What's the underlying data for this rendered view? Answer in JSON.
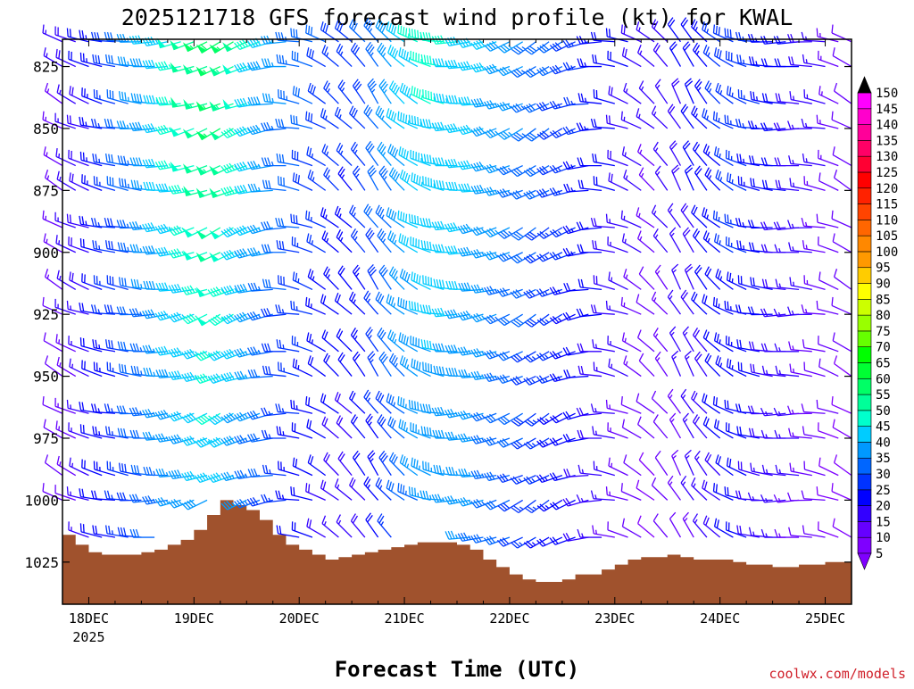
{
  "chart_data": {
    "type": "wind-barb-profile",
    "title": "2025121718 GFS forecast wind profile (kt) for KWAL",
    "xlabel": "Forecast Time (UTC)",
    "credit": "coolwx.com/models",
    "y_axis": {
      "quantity": "pressure (hPa)",
      "range": [
        1042,
        814
      ],
      "ticks": [
        825,
        850,
        875,
        900,
        925,
        950,
        975,
        1000,
        1025
      ],
      "tick_labels": [
        "825",
        "850",
        "875",
        "900",
        "925",
        "950",
        "975",
        "1000",
        "1025"
      ]
    },
    "x_axis": {
      "quantity": "forecast hour from 2025121718",
      "range": [
        0,
        180
      ],
      "ticks": [
        6,
        30,
        54,
        78,
        102,
        126,
        150,
        174
      ],
      "tick_labels": [
        "18DEC",
        "19DEC",
        "20DEC",
        "21DEC",
        "22DEC",
        "23DEC",
        "24DEC",
        "25DEC"
      ],
      "first_tick_year": "2025"
    },
    "colorbar": {
      "levels": [
        5,
        10,
        15,
        20,
        25,
        30,
        35,
        40,
        45,
        50,
        55,
        60,
        65,
        70,
        75,
        80,
        85,
        90,
        95,
        100,
        105,
        110,
        115,
        120,
        125,
        130,
        135,
        140,
        145,
        150
      ],
      "labels": [
        "5",
        "10",
        "15",
        "20",
        "25",
        "30",
        "35",
        "40",
        "45",
        "50",
        "55",
        "60",
        "65",
        "70",
        "75",
        "80",
        "85",
        "90",
        "95",
        "100",
        "105",
        "110",
        "115",
        "120",
        "125",
        "130",
        "135",
        "140",
        "145",
        "150"
      ],
      "colors": [
        "#7f00ff",
        "#6600ff",
        "#3300ff",
        "#0000ff",
        "#0033ff",
        "#0066ff",
        "#0099ff",
        "#00ccff",
        "#00ffcc",
        "#00ff99",
        "#00ff66",
        "#00ff33",
        "#00ff00",
        "#66ff00",
        "#99ff00",
        "#ccff00",
        "#ffff00",
        "#ffcc00",
        "#ff9900",
        "#ff8800",
        "#ff6600",
        "#ff4400",
        "#ff2200",
        "#ff0000",
        "#ff0033",
        "#ff0066",
        "#ff0099",
        "#ff00cc",
        "#ff00ff",
        "#ff00ff"
      ],
      "end_color_low": "#7f00ff",
      "end_color_high": "#000000"
    },
    "terrain": {
      "color": "#a0522d",
      "hours": [
        0,
        3,
        6,
        9,
        12,
        15,
        18,
        21,
        24,
        27,
        30,
        33,
        36,
        39,
        42,
        45,
        48,
        51,
        54,
        57,
        60,
        63,
        66,
        69,
        72,
        75,
        78,
        81,
        84,
        87,
        90,
        93,
        96,
        99,
        102,
        105,
        108,
        111,
        114,
        117,
        120,
        123,
        126,
        129,
        132,
        135,
        138,
        141,
        144,
        147,
        150,
        153,
        156,
        159,
        162,
        165,
        168,
        171,
        174,
        177,
        180
      ],
      "surface_pressure": [
        1014,
        1018,
        1021,
        1022,
        1022,
        1022,
        1021,
        1020,
        1018,
        1016,
        1012,
        1006,
        1000,
        1002,
        1004,
        1008,
        1014,
        1018,
        1020,
        1022,
        1024,
        1023,
        1022,
        1021,
        1020,
        1019,
        1018,
        1017,
        1017,
        1017,
        1018,
        1020,
        1024,
        1027,
        1030,
        1032,
        1033,
        1033,
        1032,
        1030,
        1030,
        1028,
        1026,
        1024,
        1023,
        1023,
        1022,
        1023,
        1024,
        1024,
        1024,
        1025,
        1026,
        1026,
        1027,
        1027,
        1026,
        1026,
        1025,
        1025,
        1026
      ]
    },
    "wind_levels_hpa": [
      815,
      825,
      840,
      850,
      865,
      875,
      890,
      900,
      915,
      925,
      940,
      950,
      965,
      975,
      990,
      1000,
      1015
    ],
    "barb_hours": [
      0,
      3,
      6,
      9,
      12,
      15,
      18,
      21,
      24,
      27,
      30,
      33,
      36,
      39,
      42,
      45,
      48,
      51,
      54,
      57,
      60,
      63,
      66,
      69,
      72,
      75,
      78,
      81,
      84,
      87,
      90,
      93,
      96,
      99,
      102,
      105,
      108,
      111,
      114,
      117,
      120,
      123,
      126,
      129,
      132,
      135,
      138,
      141,
      144,
      147,
      150,
      153,
      156,
      159,
      162,
      165,
      168,
      171,
      174,
      177,
      180
    ],
    "speed_kt_by_hour_low": [
      10,
      12,
      15,
      20,
      22,
      25,
      28,
      30,
      33,
      35,
      36,
      38,
      40,
      38,
      35,
      32,
      28,
      24,
      22,
      20,
      18,
      17,
      16,
      18,
      22,
      26,
      30,
      33,
      35,
      36,
      36,
      35,
      34,
      32,
      30,
      28,
      26,
      24,
      22,
      20,
      18,
      16,
      14,
      12,
      10,
      8,
      10,
      12,
      14,
      16,
      18,
      20,
      20,
      18,
      16,
      15,
      14,
      12,
      10,
      8,
      8
    ],
    "speed_kt_by_hour_high": [
      15,
      18,
      20,
      24,
      28,
      32,
      36,
      40,
      44,
      48,
      52,
      55,
      58,
      55,
      50,
      45,
      40,
      36,
      34,
      32,
      30,
      28,
      28,
      30,
      34,
      38,
      42,
      45,
      46,
      46,
      45,
      44,
      42,
      40,
      38,
      36,
      34,
      32,
      30,
      28,
      26,
      24,
      22,
      20,
      18,
      16,
      18,
      20,
      22,
      24,
      26,
      28,
      28,
      26,
      24,
      22,
      20,
      18,
      16,
      14,
      12
    ],
    "direction_deg_by_hour": [
      300,
      295,
      290,
      285,
      280,
      280,
      275,
      270,
      265,
      260,
      255,
      250,
      245,
      245,
      250,
      255,
      260,
      270,
      280,
      290,
      300,
      310,
      315,
      320,
      325,
      320,
      310,
      300,
      290,
      280,
      270,
      265,
      260,
      255,
      250,
      245,
      240,
      240,
      245,
      250,
      260,
      270,
      280,
      290,
      300,
      310,
      320,
      330,
      330,
      320,
      310,
      300,
      290,
      280,
      275,
      270,
      270,
      275,
      280,
      290,
      300
    ]
  }
}
